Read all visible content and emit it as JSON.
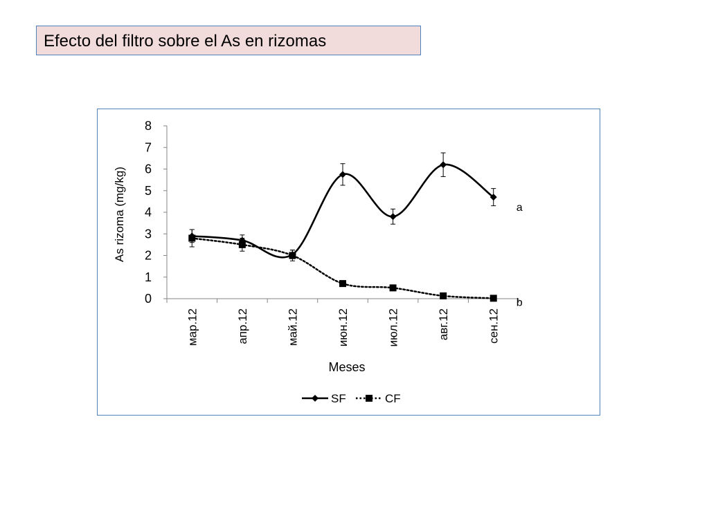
{
  "slide": {
    "title": "Efecto del filtro sobre el As en rizomas"
  },
  "chart_data": {
    "type": "line",
    "categories": [
      "мар.12",
      "апр.12",
      "май.12",
      "июн.12",
      "июл.12",
      "авг.12",
      "сен.12"
    ],
    "xlabel": "Meses",
    "ylabel": "As rizoma (mg/kg)",
    "ylim": [
      0,
      8
    ],
    "yticks": [
      0,
      1,
      2,
      3,
      4,
      5,
      6,
      7,
      8
    ],
    "grid": false,
    "legend_position": "bottom",
    "series": [
      {
        "name": "SF",
        "values": [
          2.9,
          2.7,
          2.05,
          5.75,
          3.8,
          6.2,
          4.7
        ],
        "error": [
          0.3,
          0.25,
          0.2,
          0.5,
          0.35,
          0.55,
          0.4
        ],
        "marker": "diamond",
        "line_style": "solid",
        "smooth": true,
        "color": "#000000",
        "annotation": "a"
      },
      {
        "name": "CF",
        "values": [
          2.8,
          2.5,
          2.0,
          0.7,
          0.5,
          0.13,
          0.02
        ],
        "error": [
          0.4,
          0.3,
          0.25,
          0,
          0,
          0,
          0
        ],
        "marker": "square",
        "line_style": "dotted",
        "smooth": true,
        "color": "#000000",
        "annotation": "b"
      }
    ]
  }
}
